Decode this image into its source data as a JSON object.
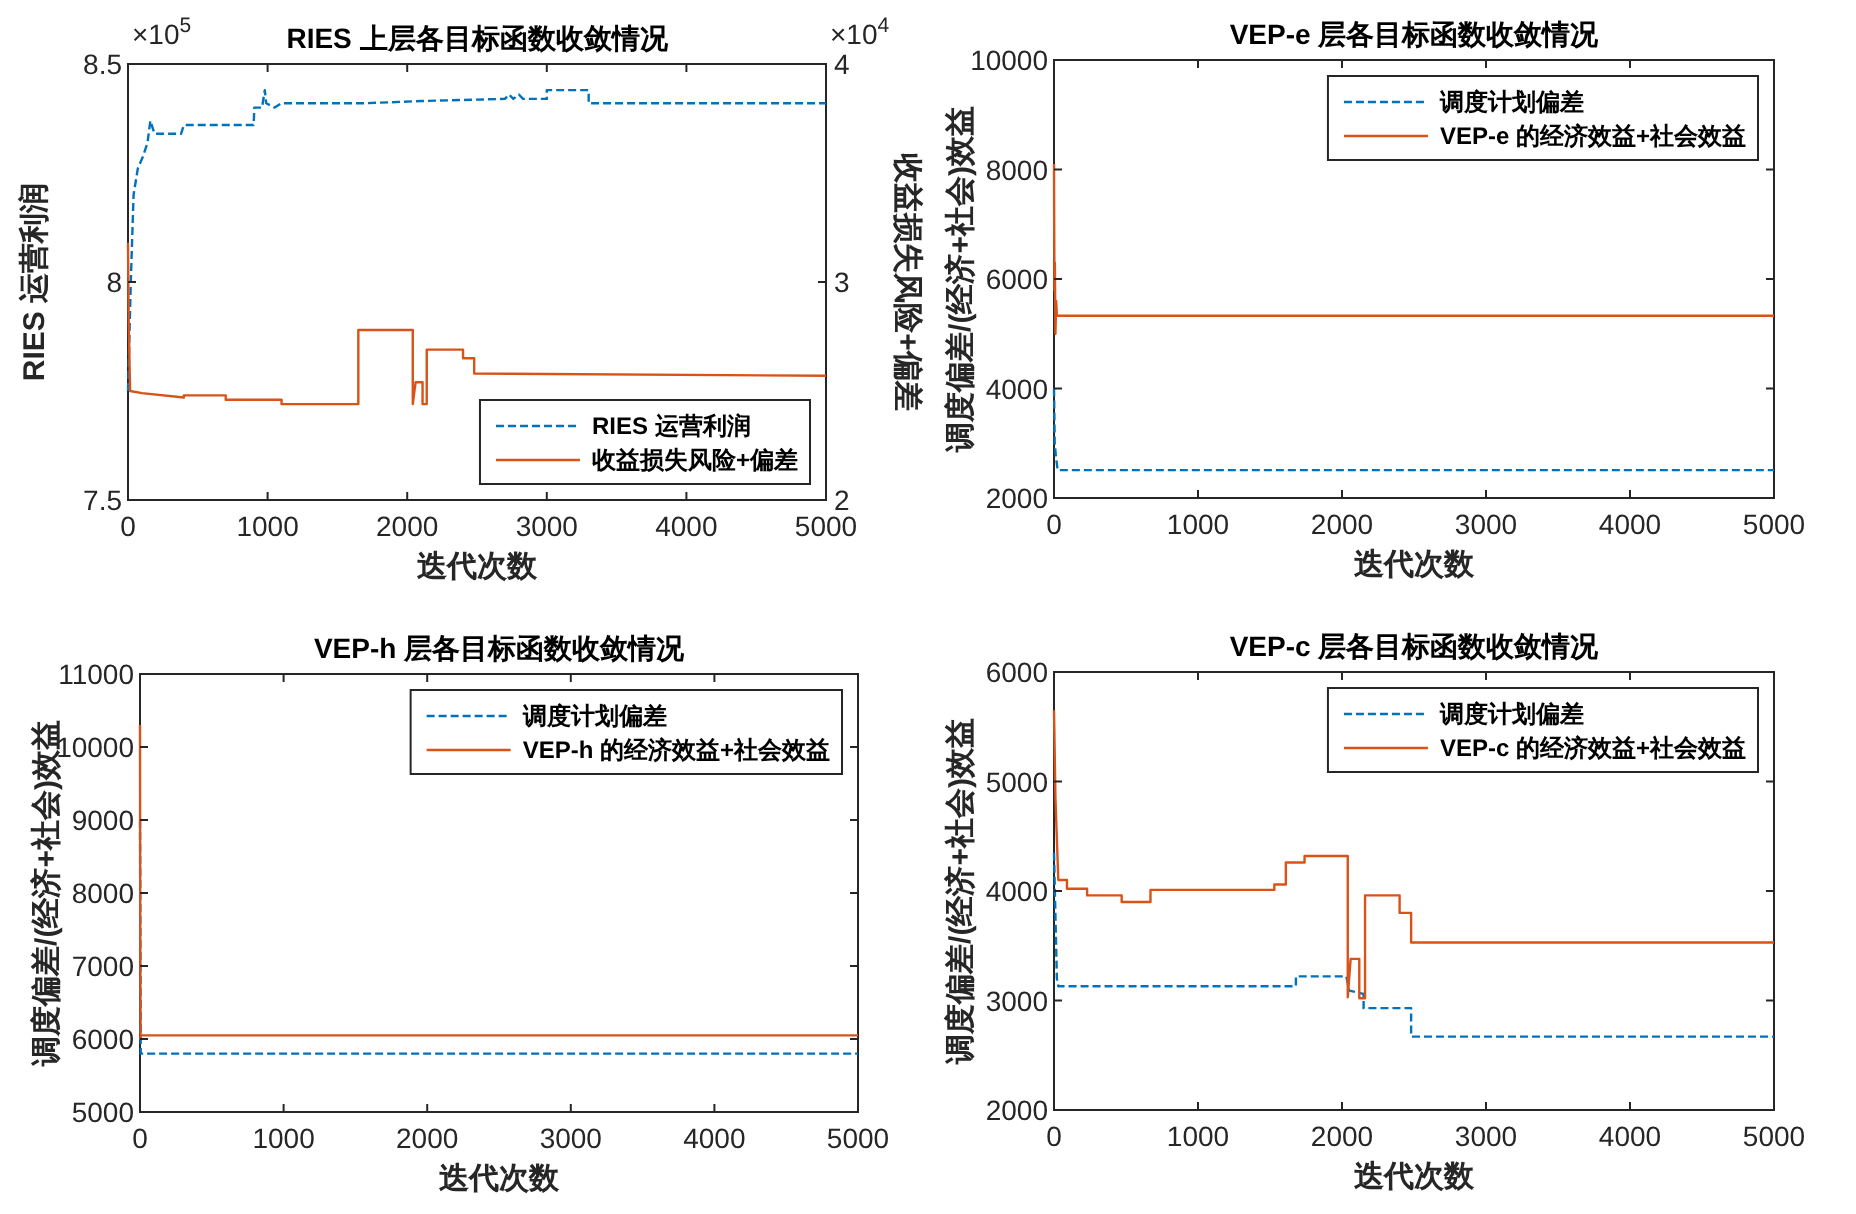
{
  "chart_data": [
    {
      "type": "line",
      "title": "RIES   上层各目标函数收敛情况",
      "xlabel": "迭代次数",
      "ylabel": "RIES 运营利润",
      "y2label": "收益损失风险+偏差",
      "annotations": [
        "×10$^{5}$",
        "×10$^{4}$"
      ],
      "xlim": [
        0,
        5000
      ],
      "xticks": [
        0,
        1000,
        2000,
        3000,
        4000,
        5000
      ],
      "ylim": [
        7.5,
        8.5
      ],
      "yticks": [
        7.5,
        8,
        8.5
      ],
      "y2lim": [
        2,
        4
      ],
      "y2ticks": [
        2,
        3,
        4
      ],
      "legend": "bottom right",
      "series": [
        {
          "name": "RIES 运营利润",
          "color": "#0072bd",
          "line_style": "dashed",
          "x": [
            0,
            20,
            40,
            70,
            110,
            140,
            160,
            190,
            380,
            400,
            900,
            905,
            960,
            980,
            990,
            1050,
            1100,
            1700,
            2100,
            2700,
            2730,
            2760,
            2800,
            2830,
            3000,
            3000,
            3300,
            3300,
            5000
          ],
          "values": [
            7.75,
            8.0,
            8.2,
            8.26,
            8.29,
            8.32,
            8.37,
            8.34,
            8.34,
            8.36,
            8.36,
            8.4,
            8.4,
            8.44,
            8.41,
            8.4,
            8.41,
            8.41,
            8.415,
            8.42,
            8.43,
            8.42,
            8.43,
            8.42,
            8.42,
            8.44,
            8.44,
            8.41,
            8.41
          ]
        },
        {
          "name": "收益损失风险+偏差",
          "color": "#d95319",
          "line_style": "solid",
          "axis": "y2",
          "x": [
            0,
            5,
            15,
            100,
            400,
            400,
            700,
            700,
            1100,
            1100,
            1650,
            1650,
            2040,
            2040,
            2060,
            2110,
            2110,
            2140,
            2140,
            2400,
            2400,
            2480,
            2480,
            5000
          ],
          "values": [
            3.18,
            2.82,
            2.5,
            2.49,
            2.47,
            2.48,
            2.48,
            2.46,
            2.46,
            2.44,
            2.44,
            2.78,
            2.78,
            2.44,
            2.54,
            2.54,
            2.44,
            2.44,
            2.69,
            2.69,
            2.65,
            2.65,
            2.58,
            2.57
          ]
        }
      ]
    },
    {
      "type": "line",
      "title": "VEP-e   层各目标函数收敛情况",
      "xlabel": "迭代次数",
      "ylabel": "调度偏差/(经济+社会)效益",
      "xlim": [
        0,
        5000
      ],
      "xticks": [
        0,
        1000,
        2000,
        3000,
        4000,
        5000
      ],
      "ylim": [
        2000,
        10000
      ],
      "yticks": [
        2000,
        4000,
        6000,
        8000,
        10000
      ],
      "legend": "top right",
      "series": [
        {
          "name": "调度计划偏差",
          "color": "#0072bd",
          "line_style": "dashed",
          "x": [
            0,
            5,
            12,
            25,
            5000
          ],
          "values": [
            4000,
            3000,
            2800,
            2510,
            2510
          ]
        },
        {
          "name": "VEP-e 的经济效益+社会效益",
          "color": "#d95319",
          "line_style": "solid",
          "x": [
            0,
            3,
            6,
            10,
            15,
            20,
            5000
          ],
          "values": [
            8100,
            5800,
            6300,
            5000,
            5600,
            5330,
            5330
          ]
        }
      ]
    },
    {
      "type": "line",
      "title": "VEP-h   层各目标函数收敛情况",
      "xlabel": "迭代次数",
      "ylabel": "调度偏差/(经济+社会)效益",
      "xlim": [
        0,
        5000
      ],
      "xticks": [
        0,
        1000,
        2000,
        3000,
        4000,
        5000
      ],
      "ylim": [
        5000,
        11000
      ],
      "yticks": [
        5000,
        6000,
        7000,
        8000,
        9000,
        10000,
        11000
      ],
      "legend": "top right",
      "series": [
        {
          "name": "调度计划偏差",
          "color": "#0072bd",
          "line_style": "dashed",
          "x": [
            0,
            5,
            5000
          ],
          "values": [
            9000,
            5800,
            5800
          ]
        },
        {
          "name": "VEP-h 的经济效益+社会效益",
          "color": "#d95319",
          "line_style": "solid",
          "x": [
            0,
            2,
            4,
            6,
            5000
          ],
          "values": [
            10300,
            7400,
            6000,
            6050,
            6050
          ]
        }
      ]
    },
    {
      "type": "line",
      "title": "VEP-c   层各目标函数收敛情况",
      "xlabel": "迭代次数",
      "ylabel": "调度偏差/(经济+社会)效益",
      "xlim": [
        0,
        5000
      ],
      "xticks": [
        0,
        1000,
        2000,
        3000,
        4000,
        5000
      ],
      "ylim": [
        2000,
        6000
      ],
      "yticks": [
        2000,
        3000,
        4000,
        5000,
        6000
      ],
      "legend": "top right",
      "series": [
        {
          "name": "调度计划偏差",
          "color": "#0072bd",
          "line_style": "dashed",
          "x": [
            0,
            20,
            30,
            1680,
            1680,
            2030,
            2050,
            2150,
            2150,
            2480,
            2480,
            5000
          ],
          "values": [
            4350,
            3200,
            3130,
            3130,
            3220,
            3220,
            3090,
            3060,
            2930,
            2930,
            2670,
            2670
          ]
        },
        {
          "name": "VEP-c 的经济效益+社会效益",
          "color": "#d95319",
          "line_style": "solid",
          "x": [
            0,
            10,
            30,
            90,
            90,
            230,
            230,
            470,
            470,
            670,
            670,
            1530,
            1530,
            1610,
            1610,
            1740,
            1740,
            2040,
            2040,
            2060,
            2120,
            2120,
            2160,
            2160,
            2400,
            2400,
            2480,
            2480,
            5000
          ],
          "values": [
            5650,
            4850,
            4100,
            4100,
            4020,
            4020,
            3960,
            3960,
            3900,
            3900,
            4010,
            4010,
            4060,
            4060,
            4260,
            4260,
            4320,
            4320,
            3030,
            3380,
            3380,
            3020,
            3020,
            3960,
            3960,
            3800,
            3800,
            3530,
            3530
          ]
        }
      ]
    }
  ]
}
